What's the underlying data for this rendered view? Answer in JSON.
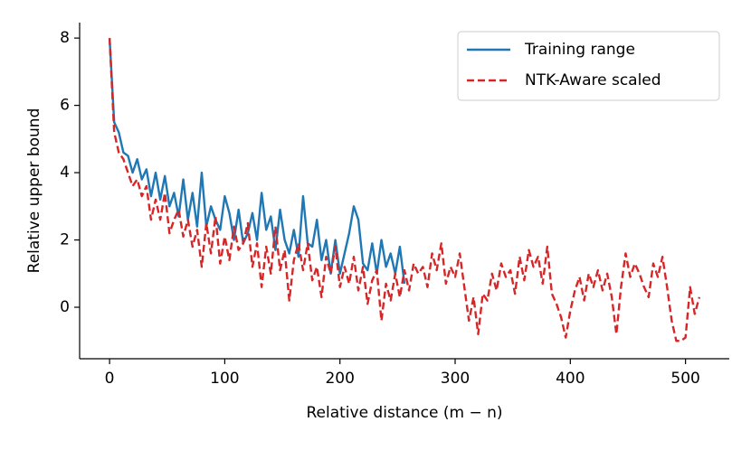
{
  "chart_data": {
    "type": "line",
    "xlabel": "Relative distance (m − n)",
    "ylabel": "Relative upper bound",
    "xlim": [
      -26,
      538
    ],
    "ylim": [
      -1.53,
      8.46
    ],
    "xticks": [
      0,
      100,
      200,
      300,
      400,
      500
    ],
    "yticks": [
      0,
      2,
      4,
      6,
      8
    ],
    "legend": "upper right",
    "series": [
      {
        "name": "Training range",
        "color": "#1f77b4",
        "dash": "solid",
        "x": [
          0,
          4,
          8,
          12,
          16,
          20,
          24,
          28,
          32,
          36,
          40,
          44,
          48,
          52,
          56,
          60,
          64,
          68,
          72,
          76,
          80,
          84,
          88,
          92,
          96,
          100,
          104,
          108,
          112,
          116,
          120,
          124,
          128,
          132,
          136,
          140,
          144,
          148,
          152,
          156,
          160,
          164,
          168,
          172,
          176,
          180,
          184,
          188,
          192,
          196,
          200,
          204,
          208,
          212,
          216,
          220,
          224,
          228,
          232,
          236,
          240,
          244,
          248,
          252,
          256
        ],
        "values": [
          8,
          5.5,
          5.2,
          4.6,
          4.5,
          4.0,
          4.4,
          3.8,
          4.1,
          3.3,
          4.0,
          3.2,
          3.9,
          3.0,
          3.4,
          2.7,
          3.8,
          2.6,
          3.4,
          2.4,
          4.0,
          2.4,
          3.0,
          2.6,
          2.3,
          3.3,
          2.8,
          2.0,
          2.9,
          1.9,
          2.2,
          2.8,
          2.0,
          3.4,
          2.3,
          2.7,
          1.7,
          2.9,
          2.0,
          1.6,
          2.3,
          1.5,
          3.3,
          1.9,
          1.8,
          2.6,
          1.4,
          2.0,
          1.0,
          2.0,
          1.0,
          1.6,
          2.2,
          3.0,
          2.6,
          1.3,
          1.1,
          1.9,
          1.0,
          2.0,
          1.2,
          1.6,
          1.0,
          1.8,
          0.7
        ]
      },
      {
        "name": "NTK-Aware scaled",
        "color": "#d62728",
        "dash": "dashed",
        "x": [
          0,
          4,
          8,
          12,
          16,
          20,
          24,
          28,
          32,
          36,
          40,
          44,
          48,
          52,
          56,
          60,
          64,
          68,
          72,
          76,
          80,
          84,
          88,
          92,
          96,
          100,
          104,
          108,
          112,
          116,
          120,
          124,
          128,
          132,
          136,
          140,
          144,
          148,
          152,
          156,
          160,
          164,
          168,
          172,
          176,
          180,
          184,
          188,
          192,
          196,
          200,
          204,
          208,
          212,
          216,
          220,
          224,
          228,
          232,
          236,
          240,
          244,
          248,
          252,
          256,
          260,
          264,
          268,
          272,
          276,
          280,
          284,
          288,
          292,
          296,
          300,
          304,
          308,
          312,
          316,
          320,
          324,
          328,
          332,
          336,
          340,
          344,
          348,
          352,
          356,
          360,
          364,
          368,
          372,
          376,
          380,
          384,
          388,
          392,
          396,
          400,
          404,
          408,
          412,
          416,
          420,
          424,
          428,
          432,
          436,
          440,
          444,
          448,
          452,
          456,
          460,
          464,
          468,
          472,
          476,
          480,
          484,
          488,
          492,
          496,
          500,
          504,
          508,
          512
        ],
        "values": [
          8,
          5.2,
          4.6,
          4.4,
          4.0,
          3.6,
          3.8,
          3.3,
          3.6,
          2.6,
          3.2,
          2.6,
          3.4,
          2.2,
          2.6,
          2.9,
          2.1,
          2.6,
          1.8,
          2.3,
          1.2,
          2.5,
          1.6,
          2.7,
          1.3,
          2.1,
          1.4,
          2.4,
          1.7,
          1.9,
          2.5,
          1.2,
          1.9,
          0.6,
          1.8,
          1.0,
          2.4,
          1.1,
          1.7,
          0.2,
          1.4,
          1.9,
          1.1,
          1.9,
          0.8,
          1.2,
          0.3,
          1.5,
          1.0,
          1.8,
          0.6,
          1.2,
          0.7,
          1.5,
          0.5,
          1.2,
          0.1,
          0.8,
          1.1,
          -0.4,
          0.7,
          0.2,
          1.0,
          0.3,
          1.1,
          0.5,
          1.3,
          1.0,
          1.2,
          0.6,
          1.6,
          1.1,
          1.9,
          0.7,
          1.2,
          0.9,
          1.6,
          0.6,
          -0.4,
          0.3,
          -0.8,
          0.4,
          0.2,
          1.0,
          0.5,
          1.3,
          0.9,
          1.1,
          0.4,
          1.5,
          0.8,
          1.7,
          1.2,
          1.5,
          0.7,
          1.8,
          0.4,
          0.1,
          -0.3,
          -0.9,
          -0.1,
          0.5,
          0.9,
          0.2,
          1.0,
          0.6,
          1.1,
          0.5,
          1.0,
          0.3,
          -0.8,
          0.6,
          1.6,
          0.9,
          1.3,
          1.0,
          0.6,
          0.3,
          1.3,
          0.9,
          1.5,
          0.6,
          -0.4,
          -1.0,
          -1.0,
          -0.9,
          0.6,
          -0.2,
          0.3
        ]
      }
    ]
  }
}
